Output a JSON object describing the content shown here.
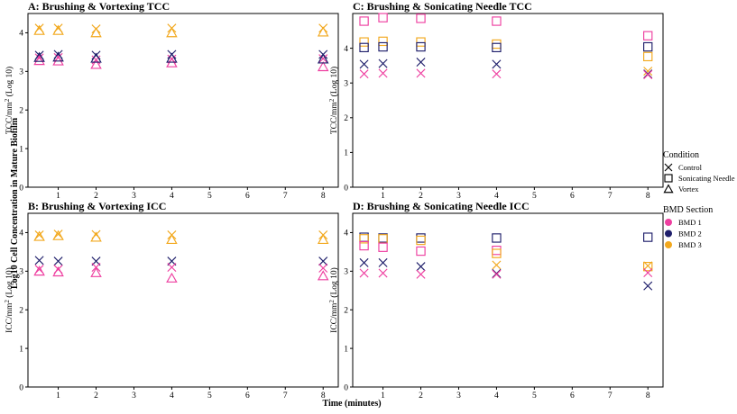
{
  "colors": {
    "BMD 1": "#ee3fa0",
    "BMD 2": "#1f1f6b",
    "BMD 3": "#f2a81d",
    "axis": "#000000",
    "background": "#ffffff"
  },
  "figure": {
    "ylabel_main": "Log10  Cell Concentration in Mature Biofilm",
    "xlabel": "Time (minutes)"
  },
  "legend": {
    "condition_title": "Condition",
    "conditions": [
      {
        "label": "Control",
        "symbol": "x"
      },
      {
        "label": "Sonicating Needle",
        "symbol": "square"
      },
      {
        "label": "Vortex",
        "symbol": "triangle"
      }
    ],
    "bmd_title": "BMD Section",
    "bmd": [
      "BMD 1",
      "BMD 2",
      "BMD 3"
    ]
  },
  "chart_data": [
    {
      "id": "A",
      "type": "scatter",
      "title": "A: Brushing & Vortexing TCC",
      "ylabel": "TCC/mm",
      "ylabel_sup": "2",
      "ylabel_suffix": " (Log 10)",
      "xlim": [
        0.2,
        8.4
      ],
      "ylim": [
        0,
        4.5
      ],
      "xticks": [
        1,
        2,
        3,
        4,
        5,
        6,
        7,
        8
      ],
      "yticks": [
        0,
        1,
        2,
        3,
        4
      ],
      "points": [
        {
          "x": 0.5,
          "y": 3.42,
          "condition": "Control",
          "bmd": "BMD 2"
        },
        {
          "x": 0.5,
          "y": 3.35,
          "condition": "Control",
          "bmd": "BMD 1"
        },
        {
          "x": 0.5,
          "y": 3.28,
          "condition": "Vortex",
          "bmd": "BMD 1"
        },
        {
          "x": 0.5,
          "y": 3.36,
          "condition": "Vortex",
          "bmd": "BMD 2"
        },
        {
          "x": 0.5,
          "y": 4.12,
          "condition": "Control",
          "bmd": "BMD 3"
        },
        {
          "x": 0.5,
          "y": 4.06,
          "condition": "Vortex",
          "bmd": "BMD 3"
        },
        {
          "x": 1,
          "y": 3.44,
          "condition": "Control",
          "bmd": "BMD 2"
        },
        {
          "x": 1,
          "y": 3.36,
          "condition": "Control",
          "bmd": "BMD 1"
        },
        {
          "x": 1,
          "y": 3.27,
          "condition": "Vortex",
          "bmd": "BMD 1"
        },
        {
          "x": 1,
          "y": 3.37,
          "condition": "Vortex",
          "bmd": "BMD 2"
        },
        {
          "x": 1,
          "y": 4.12,
          "condition": "Control",
          "bmd": "BMD 3"
        },
        {
          "x": 1,
          "y": 4.06,
          "condition": "Vortex",
          "bmd": "BMD 3"
        },
        {
          "x": 2,
          "y": 3.42,
          "condition": "Control",
          "bmd": "BMD 2"
        },
        {
          "x": 2,
          "y": 3.3,
          "condition": "Control",
          "bmd": "BMD 1"
        },
        {
          "x": 2,
          "y": 3.18,
          "condition": "Vortex",
          "bmd": "BMD 1"
        },
        {
          "x": 2,
          "y": 3.34,
          "condition": "Vortex",
          "bmd": "BMD 2"
        },
        {
          "x": 2,
          "y": 4.1,
          "condition": "Control",
          "bmd": "BMD 3"
        },
        {
          "x": 2,
          "y": 4.0,
          "condition": "Vortex",
          "bmd": "BMD 3"
        },
        {
          "x": 4,
          "y": 3.44,
          "condition": "Control",
          "bmd": "BMD 2"
        },
        {
          "x": 4,
          "y": 3.32,
          "condition": "Control",
          "bmd": "BMD 1"
        },
        {
          "x": 4,
          "y": 3.22,
          "condition": "Vortex",
          "bmd": "BMD 1"
        },
        {
          "x": 4,
          "y": 3.34,
          "condition": "Vortex",
          "bmd": "BMD 2"
        },
        {
          "x": 4,
          "y": 4.12,
          "condition": "Control",
          "bmd": "BMD 3"
        },
        {
          "x": 4,
          "y": 4.0,
          "condition": "Vortex",
          "bmd": "BMD 3"
        },
        {
          "x": 8,
          "y": 3.44,
          "condition": "Control",
          "bmd": "BMD 2"
        },
        {
          "x": 8,
          "y": 3.33,
          "condition": "Control",
          "bmd": "BMD 1"
        },
        {
          "x": 8,
          "y": 3.12,
          "condition": "Vortex",
          "bmd": "BMD 1"
        },
        {
          "x": 8,
          "y": 3.32,
          "condition": "Vortex",
          "bmd": "BMD 2"
        },
        {
          "x": 8,
          "y": 4.12,
          "condition": "Control",
          "bmd": "BMD 3"
        },
        {
          "x": 8,
          "y": 4.02,
          "condition": "Vortex",
          "bmd": "BMD 3"
        }
      ]
    },
    {
      "id": "B",
      "type": "scatter",
      "title": "B: Brushing & Vortexing ICC",
      "ylabel": "ICC/mm",
      "ylabel_sup": "2",
      "ylabel_suffix": " (Log 10)",
      "xlim": [
        0.2,
        8.4
      ],
      "ylim": [
        0,
        4.5
      ],
      "xticks": [
        1,
        2,
        3,
        4,
        5,
        6,
        7,
        8
      ],
      "yticks": [
        0,
        1,
        2,
        3,
        4
      ],
      "points": [
        {
          "x": 0.5,
          "y": 3.28,
          "condition": "Control",
          "bmd": "BMD 2"
        },
        {
          "x": 0.5,
          "y": 3.05,
          "condition": "Control",
          "bmd": "BMD 1"
        },
        {
          "x": 0.5,
          "y": 3.0,
          "condition": "Vortex",
          "bmd": "BMD 1"
        },
        {
          "x": 0.5,
          "y": 3.9,
          "condition": "Vortex",
          "bmd": "BMD 3"
        },
        {
          "x": 0.5,
          "y": 3.94,
          "condition": "Control",
          "bmd": "BMD 3"
        },
        {
          "x": 1,
          "y": 3.26,
          "condition": "Control",
          "bmd": "BMD 2"
        },
        {
          "x": 1,
          "y": 3.05,
          "condition": "Control",
          "bmd": "BMD 1"
        },
        {
          "x": 1,
          "y": 2.98,
          "condition": "Vortex",
          "bmd": "BMD 1"
        },
        {
          "x": 1,
          "y": 3.92,
          "condition": "Vortex",
          "bmd": "BMD 3"
        },
        {
          "x": 1,
          "y": 3.96,
          "condition": "Control",
          "bmd": "BMD 3"
        },
        {
          "x": 2,
          "y": 3.26,
          "condition": "Control",
          "bmd": "BMD 2"
        },
        {
          "x": 2,
          "y": 3.1,
          "condition": "Control",
          "bmd": "BMD 1"
        },
        {
          "x": 2,
          "y": 2.96,
          "condition": "Vortex",
          "bmd": "BMD 1"
        },
        {
          "x": 2,
          "y": 3.88,
          "condition": "Vortex",
          "bmd": "BMD 3"
        },
        {
          "x": 2,
          "y": 3.95,
          "condition": "Control",
          "bmd": "BMD 3"
        },
        {
          "x": 4,
          "y": 3.26,
          "condition": "Control",
          "bmd": "BMD 2"
        },
        {
          "x": 4,
          "y": 3.1,
          "condition": "Control",
          "bmd": "BMD 1"
        },
        {
          "x": 4,
          "y": 2.82,
          "condition": "Vortex",
          "bmd": "BMD 1"
        },
        {
          "x": 4,
          "y": 3.82,
          "condition": "Vortex",
          "bmd": "BMD 3"
        },
        {
          "x": 4,
          "y": 3.94,
          "condition": "Control",
          "bmd": "BMD 3"
        },
        {
          "x": 8,
          "y": 3.26,
          "condition": "Control",
          "bmd": "BMD 2"
        },
        {
          "x": 8,
          "y": 3.08,
          "condition": "Control",
          "bmd": "BMD 1"
        },
        {
          "x": 8,
          "y": 2.88,
          "condition": "Vortex",
          "bmd": "BMD 1"
        },
        {
          "x": 8,
          "y": 3.82,
          "condition": "Vortex",
          "bmd": "BMD 3"
        },
        {
          "x": 8,
          "y": 3.94,
          "condition": "Control",
          "bmd": "BMD 3"
        }
      ]
    },
    {
      "id": "C",
      "type": "scatter",
      "title": "C: Brushing & Sonicating Needle TCC",
      "ylabel": "TCC/mm",
      "ylabel_sup": "2",
      "ylabel_suffix": " (Log 10)",
      "xlim": [
        0.2,
        8.4
      ],
      "ylim": [
        0,
        5
      ],
      "xticks": [
        1,
        2,
        3,
        4,
        5,
        6,
        7,
        8
      ],
      "yticks": [
        0,
        1,
        2,
        3,
        4
      ],
      "points": [
        {
          "x": 0.5,
          "y": 4.78,
          "condition": "Sonicating Needle",
          "bmd": "BMD 1"
        },
        {
          "x": 0.5,
          "y": 4.18,
          "condition": "Sonicating Needle",
          "bmd": "BMD 3"
        },
        {
          "x": 0.5,
          "y": 4.02,
          "condition": "Sonicating Needle",
          "bmd": "BMD 2"
        },
        {
          "x": 0.5,
          "y": 3.54,
          "condition": "Control",
          "bmd": "BMD 2"
        },
        {
          "x": 0.5,
          "y": 3.26,
          "condition": "Control",
          "bmd": "BMD 1"
        },
        {
          "x": 1,
          "y": 4.88,
          "condition": "Sonicating Needle",
          "bmd": "BMD 1"
        },
        {
          "x": 1,
          "y": 4.2,
          "condition": "Sonicating Needle",
          "bmd": "BMD 3"
        },
        {
          "x": 1,
          "y": 4.04,
          "condition": "Sonicating Needle",
          "bmd": "BMD 2"
        },
        {
          "x": 1,
          "y": 3.56,
          "condition": "Control",
          "bmd": "BMD 2"
        },
        {
          "x": 1,
          "y": 3.28,
          "condition": "Control",
          "bmd": "BMD 1"
        },
        {
          "x": 2,
          "y": 4.86,
          "condition": "Sonicating Needle",
          "bmd": "BMD 1"
        },
        {
          "x": 2,
          "y": 4.18,
          "condition": "Sonicating Needle",
          "bmd": "BMD 3"
        },
        {
          "x": 2,
          "y": 4.04,
          "condition": "Sonicating Needle",
          "bmd": "BMD 2"
        },
        {
          "x": 2,
          "y": 3.6,
          "condition": "Control",
          "bmd": "BMD 2"
        },
        {
          "x": 2,
          "y": 3.28,
          "condition": "Control",
          "bmd": "BMD 1"
        },
        {
          "x": 4,
          "y": 4.78,
          "condition": "Sonicating Needle",
          "bmd": "BMD 1"
        },
        {
          "x": 4,
          "y": 4.12,
          "condition": "Sonicating Needle",
          "bmd": "BMD 3"
        },
        {
          "x": 4,
          "y": 4.02,
          "condition": "Sonicating Needle",
          "bmd": "BMD 2"
        },
        {
          "x": 4,
          "y": 3.54,
          "condition": "Control",
          "bmd": "BMD 2"
        },
        {
          "x": 4,
          "y": 3.26,
          "condition": "Control",
          "bmd": "BMD 1"
        },
        {
          "x": 8,
          "y": 4.36,
          "condition": "Sonicating Needle",
          "bmd": "BMD 1"
        },
        {
          "x": 8,
          "y": 4.04,
          "condition": "Sonicating Needle",
          "bmd": "BMD 2"
        },
        {
          "x": 8,
          "y": 3.76,
          "condition": "Sonicating Needle",
          "bmd": "BMD 3"
        },
        {
          "x": 8,
          "y": 3.34,
          "condition": "Control",
          "bmd": "BMD 3"
        },
        {
          "x": 8,
          "y": 3.26,
          "condition": "Control",
          "bmd": "BMD 2"
        },
        {
          "x": 8,
          "y": 3.24,
          "condition": "Control",
          "bmd": "BMD 1"
        }
      ]
    },
    {
      "id": "D",
      "type": "scatter",
      "title": "D: Brushing & Sonicating Needle ICC",
      "ylabel": "ICC/mm",
      "ylabel_sup": "2",
      "ylabel_suffix": " (Log 10)",
      "xlim": [
        0.2,
        8.4
      ],
      "ylim": [
        0,
        4.5
      ],
      "xticks": [
        1,
        2,
        3,
        4,
        5,
        6,
        7,
        8
      ],
      "yticks": [
        0,
        1,
        2,
        3,
        4
      ],
      "points": [
        {
          "x": 0.5,
          "y": 3.88,
          "condition": "Sonicating Needle",
          "bmd": "BMD 2"
        },
        {
          "x": 0.5,
          "y": 3.84,
          "condition": "Sonicating Needle",
          "bmd": "BMD 3"
        },
        {
          "x": 0.5,
          "y": 3.66,
          "condition": "Sonicating Needle",
          "bmd": "BMD 1"
        },
        {
          "x": 0.5,
          "y": 3.22,
          "condition": "Control",
          "bmd": "BMD 2"
        },
        {
          "x": 0.5,
          "y": 2.95,
          "condition": "Control",
          "bmd": "BMD 1"
        },
        {
          "x": 1,
          "y": 3.86,
          "condition": "Sonicating Needle",
          "bmd": "BMD 2"
        },
        {
          "x": 1,
          "y": 3.84,
          "condition": "Sonicating Needle",
          "bmd": "BMD 3"
        },
        {
          "x": 1,
          "y": 3.62,
          "condition": "Sonicating Needle",
          "bmd": "BMD 1"
        },
        {
          "x": 1,
          "y": 3.22,
          "condition": "Control",
          "bmd": "BMD 2"
        },
        {
          "x": 1,
          "y": 2.95,
          "condition": "Control",
          "bmd": "BMD 1"
        },
        {
          "x": 2,
          "y": 3.86,
          "condition": "Sonicating Needle",
          "bmd": "BMD 2"
        },
        {
          "x": 2,
          "y": 3.8,
          "condition": "Sonicating Needle",
          "bmd": "BMD 3"
        },
        {
          "x": 2,
          "y": 3.52,
          "condition": "Sonicating Needle",
          "bmd": "BMD 1"
        },
        {
          "x": 2,
          "y": 3.12,
          "condition": "Control",
          "bmd": "BMD 2"
        },
        {
          "x": 2,
          "y": 2.92,
          "condition": "Control",
          "bmd": "BMD 1"
        },
        {
          "x": 4,
          "y": 3.86,
          "condition": "Sonicating Needle",
          "bmd": "BMD 2"
        },
        {
          "x": 4,
          "y": 3.54,
          "condition": "Sonicating Needle",
          "bmd": "BMD 1"
        },
        {
          "x": 4,
          "y": 3.46,
          "condition": "Sonicating Needle",
          "bmd": "BMD 3"
        },
        {
          "x": 4,
          "y": 3.16,
          "condition": "Control",
          "bmd": "BMD 3"
        },
        {
          "x": 4,
          "y": 2.94,
          "condition": "Control",
          "bmd": "BMD 2"
        },
        {
          "x": 4,
          "y": 2.92,
          "condition": "Control",
          "bmd": "BMD 1"
        },
        {
          "x": 8,
          "y": 3.88,
          "condition": "Sonicating Needle",
          "bmd": "BMD 2"
        },
        {
          "x": 8,
          "y": 3.12,
          "condition": "Sonicating Needle",
          "bmd": "BMD 3"
        },
        {
          "x": 8,
          "y": 3.14,
          "condition": "Control",
          "bmd": "BMD 3"
        },
        {
          "x": 8,
          "y": 2.96,
          "condition": "Control",
          "bmd": "BMD 1"
        },
        {
          "x": 8,
          "y": 2.62,
          "condition": "Control",
          "bmd": "BMD 2"
        }
      ]
    }
  ]
}
